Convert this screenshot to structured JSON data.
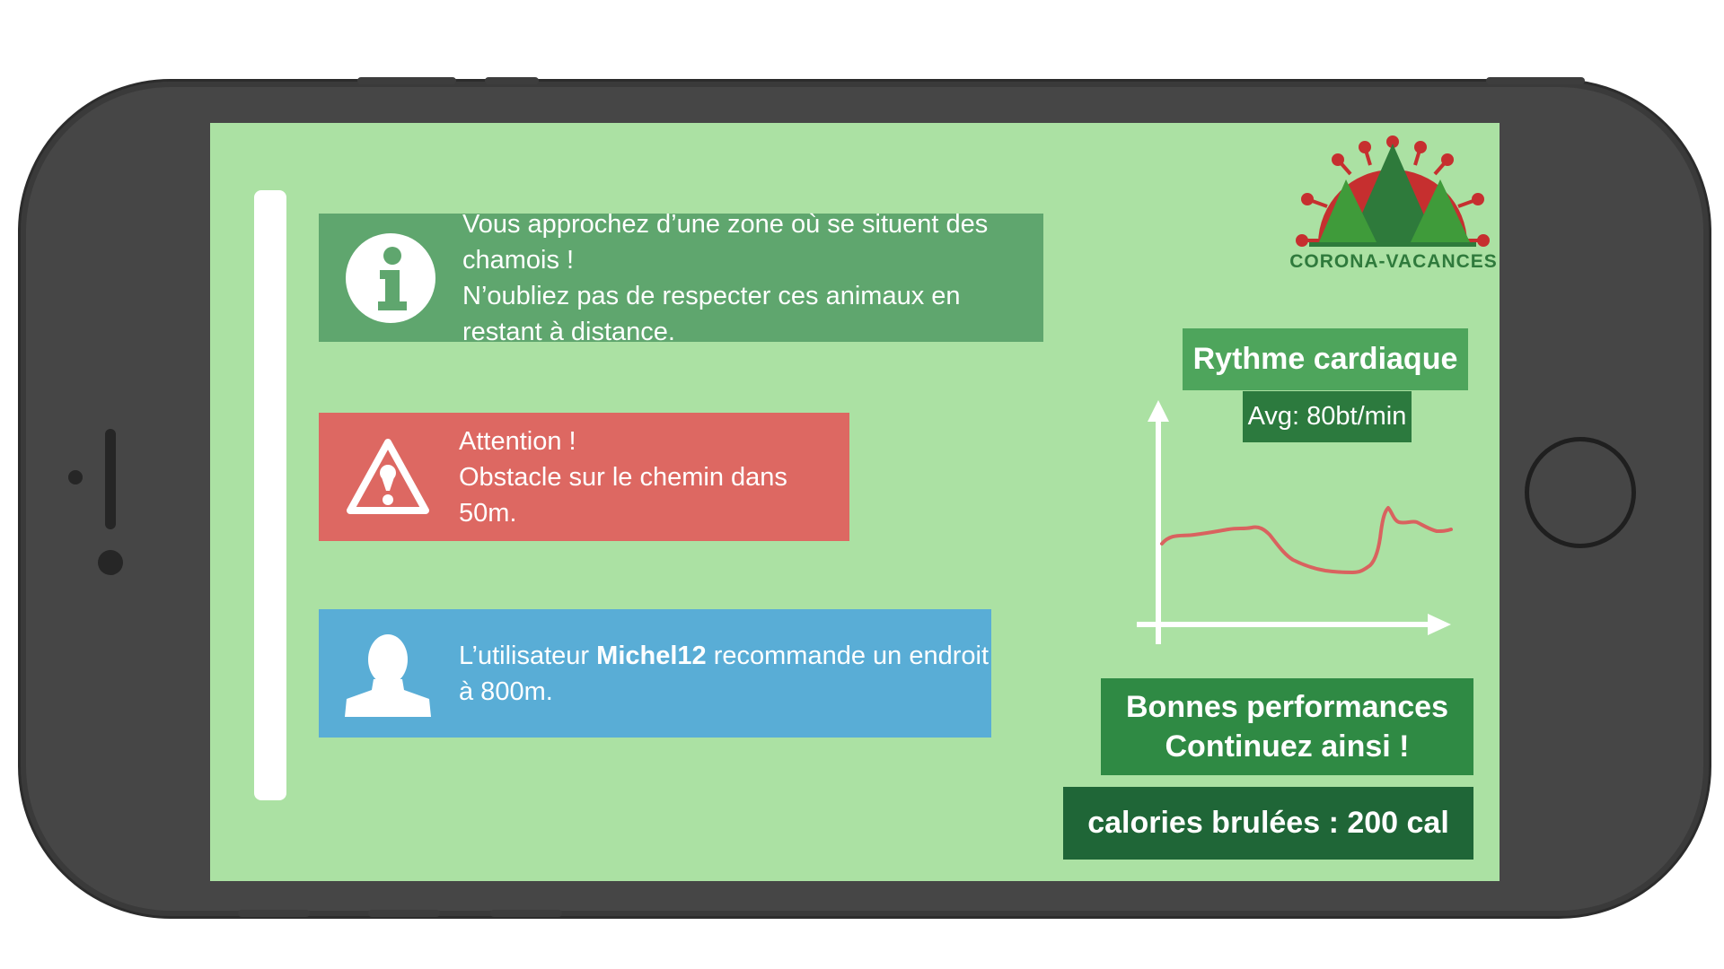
{
  "notifications": [
    {
      "type": "info",
      "icon": "info-icon",
      "color": "#5fa66e",
      "text": "Vous  approchez d’une zone où se situent des chamois !\nN’oubliez pas de respecter ces animaux en restant à distance."
    },
    {
      "type": "warning",
      "icon": "warning-icon",
      "color": "#dd6862",
      "text": "Attention !\nObstacle sur le chemin dans 50m."
    },
    {
      "type": "user",
      "icon": "user-icon",
      "color": "#59add6",
      "prefix": "L’utilisateur ",
      "username": "Michel12",
      "suffix": "  recommande un endroit\nà 800m."
    }
  ],
  "logo": {
    "label": "CORONA-VACANCES"
  },
  "heart_rate": {
    "title": "Rythme cardiaque",
    "average": "Avg: 80bt/min",
    "line_color": "#d9625f"
  },
  "performance": {
    "line1": "Bonnes performances",
    "line2": "Continuez ainsi !"
  },
  "calories": {
    "text": "calories brulées : 200 cal"
  },
  "colors": {
    "screen_background": "#abe1a3",
    "phone_body": "#464646"
  }
}
